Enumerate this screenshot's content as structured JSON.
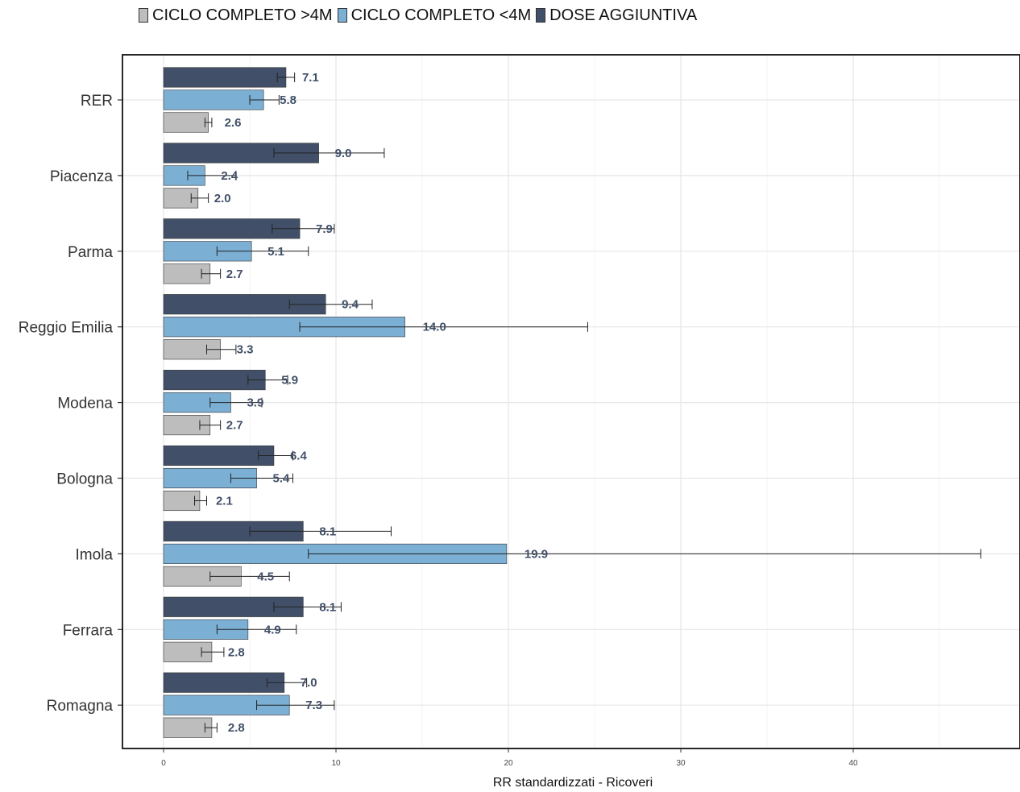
{
  "legend": [
    {
      "name": "CICLO COMPLETO >4M",
      "color": "#bdbdbd"
    },
    {
      "name": "CICLO COMPLETO <4M",
      "color": "#7bafd4"
    },
    {
      "name": "DOSE AGGIUNTIVA",
      "color": "#415068"
    }
  ],
  "chart_data": {
    "type": "bar",
    "orientation": "horizontal",
    "categories": [
      "RER",
      "Piacenza",
      "Parma",
      "Reggio Emilia",
      "Modena",
      "Bologna",
      "Imola",
      "Ferrara",
      "Romagna"
    ],
    "series": [
      {
        "name": "DOSE AGGIUNTIVA",
        "color": "#415068",
        "values": [
          7.1,
          9.0,
          7.9,
          9.4,
          5.9,
          6.4,
          8.1,
          8.1,
          7.0
        ],
        "labels": [
          "7.1",
          "9.0",
          "7.9",
          "9.4",
          "5.9",
          "6.4",
          "8.1",
          "8.1",
          "7.0"
        ],
        "ci_low": [
          6.6,
          6.4,
          6.3,
          7.3,
          4.9,
          5.5,
          5.0,
          6.4,
          6.0
        ],
        "ci_high": [
          7.6,
          12.8,
          9.9,
          12.1,
          7.2,
          7.5,
          13.2,
          10.3,
          8.3
        ]
      },
      {
        "name": "CICLO COMPLETO <4M",
        "color": "#7bafd4",
        "values": [
          5.8,
          2.4,
          5.1,
          14.0,
          3.9,
          5.4,
          19.9,
          4.9,
          7.3
        ],
        "labels": [
          "5.8",
          "2.4",
          "5.1",
          "14.0",
          "3.9",
          "5.4",
          "19.9",
          "4.9",
          "7.3"
        ],
        "ci_low": [
          5.0,
          1.4,
          3.1,
          7.9,
          2.7,
          3.9,
          8.4,
          3.1,
          5.4
        ],
        "ci_high": [
          6.7,
          4.2,
          8.4,
          24.6,
          5.7,
          7.5,
          47.4,
          7.7,
          9.9
        ]
      },
      {
        "name": "CICLO COMPLETO >4M",
        "color": "#bdbdbd",
        "values": [
          2.6,
          2.0,
          2.7,
          3.3,
          2.7,
          2.1,
          4.5,
          2.8,
          2.8
        ],
        "labels": [
          "2.6",
          "2.0",
          "2.7",
          "3.3",
          "2.7",
          "2.1",
          "4.5",
          "2.8",
          "2.8"
        ],
        "ci_low": [
          2.4,
          1.6,
          2.2,
          2.5,
          2.1,
          1.8,
          2.7,
          2.2,
          2.4
        ],
        "ci_high": [
          2.8,
          2.6,
          3.3,
          4.2,
          3.3,
          2.5,
          7.3,
          3.5,
          3.1
        ]
      }
    ],
    "xlabel": "RR standardizzati - Ricoveri",
    "xlim": [
      -2.4,
      49.6
    ],
    "xticks": [
      "0",
      "10",
      "20",
      "30",
      "40"
    ],
    "grid": true,
    "legend_position": "top"
  }
}
